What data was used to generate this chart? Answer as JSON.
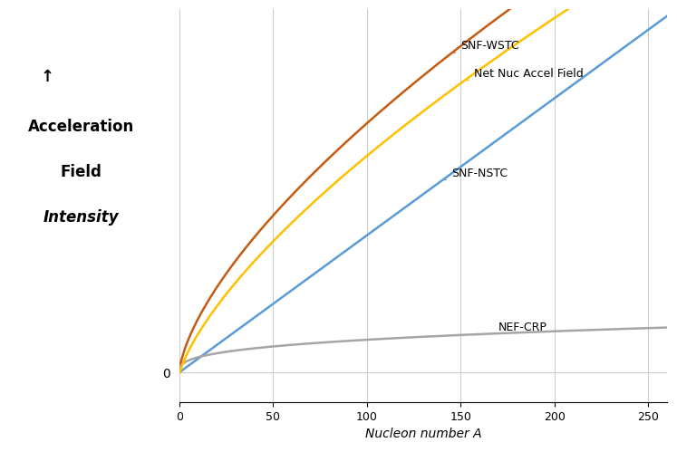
{
  "xlabel": "Nucleon number A",
  "x_min": 0,
  "x_max": 260,
  "x_ticks": [
    0,
    50,
    100,
    150,
    200,
    250
  ],
  "snf_nstc_color": "#5B9BD5",
  "snf_wstc_color": "#C55A11",
  "nef_crp_color": "#A5A5A5",
  "net_color": "#FFC000",
  "linewidth": 1.8,
  "grid_color": "#CCCCCC",
  "snf_nstc_label": "SNF-NSTC",
  "snf_wstc_label": "SNF-WSTC",
  "nef_crp_label": "NEF-CRP",
  "net_label": "Net Nuc Accel Field",
  "snf_nstc_scale": 0.016,
  "snf_wstc_scale": 0.135,
  "nef_crp_scale": 0.082,
  "ylabel_arrow": "↑",
  "ylabel_line1": "Acceleration",
  "ylabel_line2": "Field",
  "ylabel_line3": "Intensity"
}
